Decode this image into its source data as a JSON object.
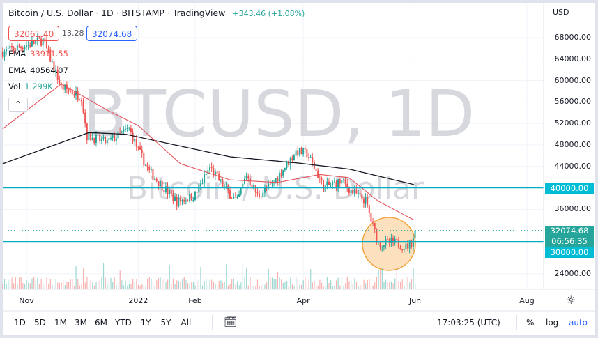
{
  "header": {
    "title_parts": [
      "Bitcoin / U.S. Dollar",
      "1D",
      "BITSTAMP",
      "TradingView"
    ],
    "separator": "·",
    "change": "+343.46 (+1.08%)",
    "currency": "USD"
  },
  "quote": {
    "bid": "32061.40",
    "spread": "13.28",
    "ask": "32074.68"
  },
  "legend": {
    "ema1_label": "EMA",
    "ema1_value": "33911.55",
    "ema2_label": "EMA",
    "ema2_value": "40564.07",
    "vol_label": "Vol",
    "vol_value": "1.299K",
    "collapse_icon": "chevron-up-icon"
  },
  "watermark": {
    "symbol": "BTCUSD, 1D",
    "name": "Bitcoin / U.S. Dollar"
  },
  "colors": {
    "up": "#26a69a",
    "down": "#ef5350",
    "ema_fast": "#e5535b",
    "ema_slow": "#131722",
    "hline": "#00acc1",
    "last_price": "#26a69a",
    "highlight": "#f7b35a"
  },
  "price_axis": {
    "ticks": [
      "68000.00",
      "64000.00",
      "60000.00",
      "56000.00",
      "52000.00",
      "48000.00",
      "44000.00",
      "36000.00",
      "24000.00"
    ],
    "tags": {
      "level_high": "40000.00",
      "last": "32074.68",
      "countdown": "06:56:35",
      "level_low": "30000.00"
    }
  },
  "time_axis": {
    "labels": [
      {
        "text": "Nov",
        "date": "2021-11-01"
      },
      {
        "text": "2022",
        "date": "2022-01-01"
      },
      {
        "text": "Feb",
        "date": "2022-02-01"
      },
      {
        "text": "Apr",
        "date": "2022-04-01"
      },
      {
        "text": "Jun",
        "date": "2022-06-01"
      },
      {
        "text": "Aug",
        "date": "2022-08-01"
      }
    ],
    "settings_icon": "gear-icon"
  },
  "toolbar": {
    "ranges": [
      "1D",
      "5D",
      "1M",
      "3M",
      "6M",
      "YTD",
      "1Y",
      "5Y",
      "All"
    ],
    "goto_icon": "calendar-goto-icon",
    "clock": "17:03:25 (UTC)",
    "percent": "%",
    "log": "log",
    "auto": "auto"
  },
  "chart_data": {
    "type": "candlestick",
    "symbol": "BTCUSD",
    "interval": "1D",
    "ylim": [
      22000,
      70000
    ],
    "horizontal_levels": [
      40000,
      30000
    ],
    "last_price": 32074.68,
    "close_anchors": [
      [
        "2021-10-19",
        65300
      ],
      [
        "2021-11-10",
        67500
      ],
      [
        "2021-11-20",
        58800
      ],
      [
        "2021-12-01",
        57000
      ],
      [
        "2021-12-04",
        49700
      ],
      [
        "2021-12-15",
        48500
      ],
      [
        "2021-12-27",
        51000
      ],
      [
        "2022-01-01",
        47000
      ],
      [
        "2022-01-07",
        43000
      ],
      [
        "2022-01-22",
        37400
      ],
      [
        "2022-02-01",
        38600
      ],
      [
        "2022-02-09",
        43800
      ],
      [
        "2022-02-17",
        40000
      ],
      [
        "2022-02-24",
        37400
      ],
      [
        "2022-03-01",
        42500
      ],
      [
        "2022-03-07",
        38600
      ],
      [
        "2022-03-15",
        40600
      ],
      [
        "2022-03-28",
        46800
      ],
      [
        "2022-04-03",
        46400
      ],
      [
        "2022-04-08",
        43200
      ],
      [
        "2022-04-12",
        40100
      ],
      [
        "2022-04-22",
        41200
      ],
      [
        "2022-04-27",
        39500
      ],
      [
        "2022-05-05",
        37500
      ],
      [
        "2022-05-09",
        32800
      ],
      [
        "2022-05-12",
        29600
      ],
      [
        "2022-05-20",
        29800
      ],
      [
        "2022-05-27",
        29000
      ],
      [
        "2022-05-30",
        29800
      ],
      [
        "2022-06-01",
        32074.68
      ]
    ],
    "ema_fast": [
      [
        "2021-10-19",
        51000
      ],
      [
        "2021-11-20",
        59400
      ],
      [
        "2021-12-15",
        54500
      ],
      [
        "2022-01-01",
        51600
      ],
      [
        "2022-01-24",
        44500
      ],
      [
        "2022-02-20",
        41500
      ],
      [
        "2022-03-18",
        41000
      ],
      [
        "2022-04-10",
        42500
      ],
      [
        "2022-04-26",
        41900
      ],
      [
        "2022-05-12",
        37500
      ],
      [
        "2022-06-01",
        33911.55
      ]
    ],
    "ema_slow": [
      [
        "2021-10-19",
        44500
      ],
      [
        "2021-12-05",
        50300
      ],
      [
        "2021-12-25",
        50000
      ],
      [
        "2022-02-20",
        45800
      ],
      [
        "2022-03-30",
        44600
      ],
      [
        "2022-04-26",
        43500
      ],
      [
        "2022-06-01",
        40564.07
      ]
    ]
  }
}
